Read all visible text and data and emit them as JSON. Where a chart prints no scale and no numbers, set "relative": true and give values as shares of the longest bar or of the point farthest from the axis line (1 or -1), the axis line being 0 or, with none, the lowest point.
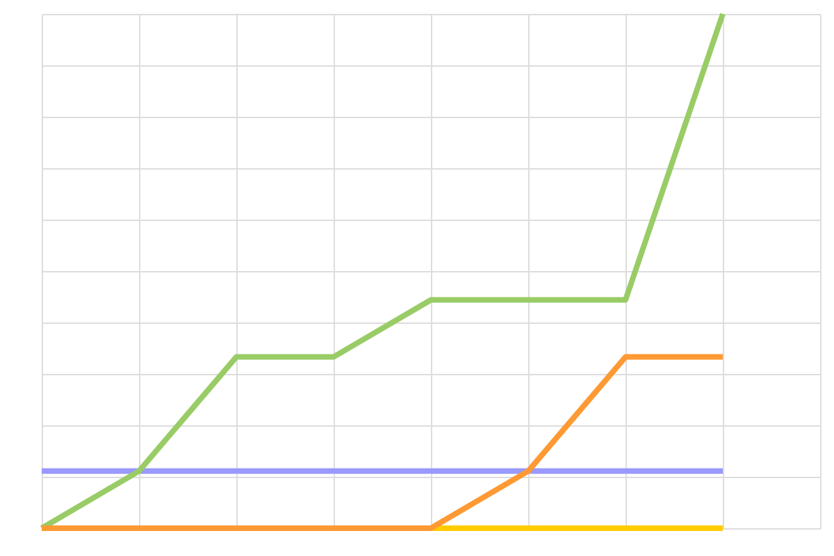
{
  "chart_data": {
    "type": "line",
    "relative": true,
    "grid": true,
    "legend": false,
    "tick_labels": false,
    "marker": "none",
    "line_style": "solid",
    "categories": [
      null,
      null,
      null,
      null,
      null,
      null,
      null,
      null
    ],
    "series": [
      {
        "color": "#ffcc00",
        "values": [
          null,
          null,
          null,
          null,
          0,
          0,
          0,
          0
        ]
      },
      {
        "color": "#9999ff",
        "values": [
          0.111,
          0.111,
          0.111,
          0.111,
          0.111,
          0.111,
          0.111,
          0.111
        ]
      },
      {
        "color": "#99cc66",
        "values": [
          0,
          0.111,
          0.333,
          0.333,
          0.444,
          0.444,
          0.444,
          1
        ]
      },
      {
        "color": "#ff9933",
        "values": [
          0,
          0,
          0,
          0,
          0,
          0.111,
          0.333,
          0.333
        ]
      }
    ]
  }
}
